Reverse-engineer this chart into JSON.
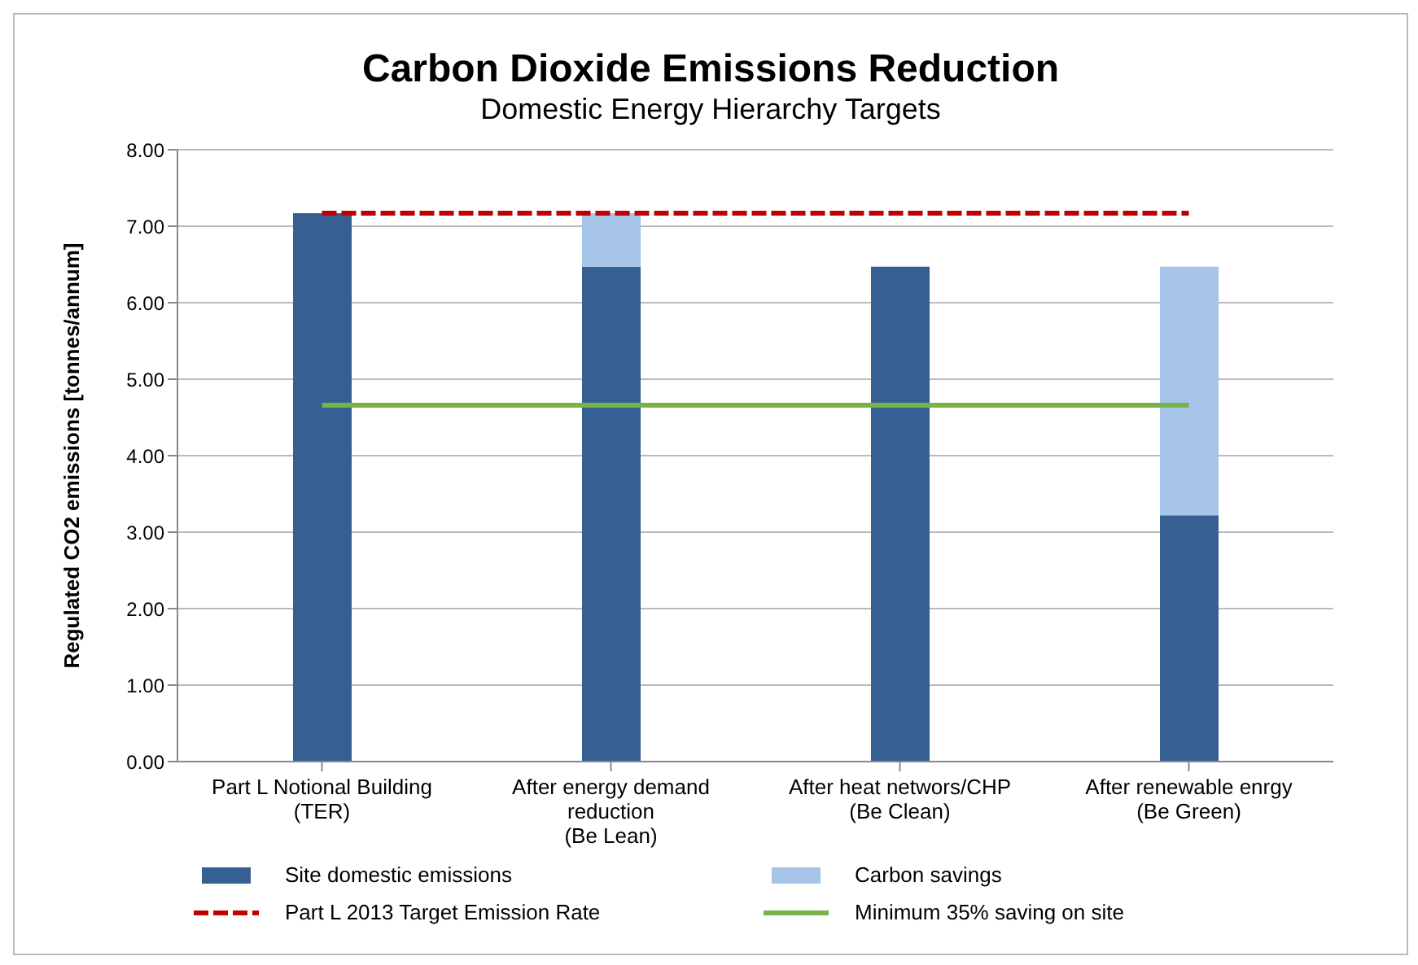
{
  "chart_data": {
    "type": "bar",
    "title": "Carbon Dioxide Emissions Reduction",
    "subtitle": "Domestic Energy Hierarchy Targets",
    "ylabel": "Regulated CO2 emissions [tonnes/annum]",
    "categories": [
      "Part L Notional Building (TER)",
      "After energy demand reduction (Be Lean)",
      "After heat networs/CHP (Be Clean)",
      "After renewable enrgy (Be Green)"
    ],
    "stacked": true,
    "series": [
      {
        "name": "Site domestic emissions",
        "color": "#366092",
        "values": [
          7.17,
          6.47,
          6.47,
          3.22
        ]
      },
      {
        "name": "Carbon savings",
        "color": "#a6c3e8",
        "values": [
          null,
          0.7,
          null,
          3.25
        ]
      },
      {
        "name": "Part L 2013 Target Emission Rate",
        "type": "line",
        "color": "#c00000",
        "line_style": "dashed",
        "values": [
          7.17,
          7.17,
          7.17,
          7.17
        ]
      },
      {
        "name": "Minimum 35% saving on site",
        "type": "line",
        "color": "#77b347",
        "line_style": "solid",
        "values": [
          4.66,
          4.66,
          4.66,
          4.66
        ]
      }
    ],
    "ylim": [
      0,
      8
    ],
    "yticks": [
      {
        "value": 0,
        "label": "0.00"
      },
      {
        "value": 1,
        "label": "1.00"
      },
      {
        "value": 2,
        "label": "2.00"
      },
      {
        "value": 3,
        "label": "3.00"
      },
      {
        "value": 4,
        "label": "4.00"
      },
      {
        "value": 5,
        "label": "5.00"
      },
      {
        "value": 6,
        "label": "6.00"
      },
      {
        "value": 7,
        "label": "7.00"
      },
      {
        "value": 8,
        "label": "8.00"
      }
    ],
    "grid": "y",
    "legend": "bottom",
    "marker": "none"
  }
}
